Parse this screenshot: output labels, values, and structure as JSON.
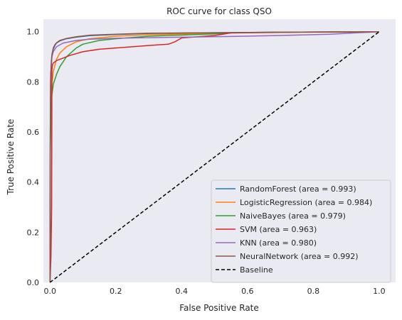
{
  "chart_data": {
    "type": "line",
    "title": "ROC curve for class QSO",
    "xlabel": "False Positive Rate",
    "ylabel": "True Positive Rate",
    "xlim": [
      -0.02,
      1.05
    ],
    "ylim": [
      0,
      1.05
    ],
    "xticks": [
      0.0,
      0.2,
      0.4,
      0.6,
      0.8,
      1.0
    ],
    "yticks": [
      0.0,
      0.2,
      0.4,
      0.6,
      0.8,
      1.0
    ],
    "xtick_labels": [
      "0.0",
      "0.2",
      "0.4",
      "0.6",
      "0.8",
      "1.0"
    ],
    "ytick_labels": [
      "0.0",
      "0.2",
      "0.4",
      "0.6",
      "0.8",
      "1.0"
    ],
    "grid": false,
    "background": "#eaeaf2",
    "legend_position": "lower-right",
    "series": [
      {
        "name": "RandomForest (area = 0.993)",
        "color": "#1f77b4",
        "x": [
          0,
          0.001,
          0.002,
          0.004,
          0.006,
          0.01,
          0.015,
          0.02,
          0.03,
          0.05,
          0.08,
          0.12,
          0.2,
          0.3,
          0.5,
          0.7,
          1.0
        ],
        "y": [
          0,
          0.6,
          0.8,
          0.87,
          0.9,
          0.93,
          0.945,
          0.955,
          0.963,
          0.972,
          0.978,
          0.984,
          0.989,
          0.993,
          0.996,
          0.998,
          1.0
        ]
      },
      {
        "name": "LogisticRegression (area = 0.984)",
        "color": "#ff7f0e",
        "x": [
          0,
          0.001,
          0.003,
          0.005,
          0.01,
          0.02,
          0.03,
          0.05,
          0.08,
          0.12,
          0.2,
          0.3,
          0.5,
          0.7,
          1.0
        ],
        "y": [
          0,
          0.55,
          0.72,
          0.78,
          0.84,
          0.89,
          0.915,
          0.94,
          0.96,
          0.972,
          0.982,
          0.988,
          0.994,
          0.997,
          1.0
        ]
      },
      {
        "name": "NaiveBayes (area = 0.979)",
        "color": "#2ca02c",
        "x": [
          0,
          0.001,
          0.003,
          0.005,
          0.01,
          0.02,
          0.03,
          0.05,
          0.08,
          0.1,
          0.15,
          0.2,
          0.3,
          0.5,
          0.56,
          0.7,
          1.0
        ],
        "y": [
          0,
          0.5,
          0.68,
          0.74,
          0.79,
          0.83,
          0.86,
          0.9,
          0.935,
          0.95,
          0.965,
          0.972,
          0.982,
          0.991,
          0.996,
          0.998,
          1.0
        ]
      },
      {
        "name": "SVM (area = 0.963)",
        "color": "#d62728",
        "x": [
          0,
          0.003,
          0.005,
          0.006,
          0.008,
          0.01,
          0.015,
          0.02,
          0.04,
          0.06,
          0.1,
          0.15,
          0.2,
          0.3,
          0.36,
          0.38,
          0.4,
          0.5,
          0.55,
          0.7,
          1.0
        ],
        "y": [
          0,
          0.1,
          0.3,
          0.85,
          0.87,
          0.875,
          0.88,
          0.885,
          0.895,
          0.905,
          0.92,
          0.93,
          0.935,
          0.945,
          0.95,
          0.96,
          0.975,
          0.985,
          0.995,
          0.998,
          1.0
        ]
      },
      {
        "name": "KNN (area = 0.980)",
        "color": "#9467bd",
        "x": [
          0,
          0.001,
          0.002,
          0.004,
          0.006,
          0.01,
          0.015,
          0.02,
          0.04,
          0.08,
          0.12,
          0.2,
          0.4,
          0.55,
          0.7,
          0.85,
          1.0
        ],
        "y": [
          0,
          0.6,
          0.82,
          0.87,
          0.9,
          0.92,
          0.93,
          0.94,
          0.955,
          0.965,
          0.97,
          0.974,
          0.978,
          0.981,
          0.985,
          0.99,
          1.0
        ]
      },
      {
        "name": "NeuralNetwork (area = 0.992)",
        "color": "#8c564b",
        "x": [
          0,
          0.001,
          0.002,
          0.004,
          0.006,
          0.01,
          0.015,
          0.02,
          0.03,
          0.05,
          0.08,
          0.12,
          0.2,
          0.3,
          0.5,
          0.7,
          1.0
        ],
        "y": [
          0,
          0.62,
          0.82,
          0.88,
          0.91,
          0.935,
          0.948,
          0.956,
          0.965,
          0.973,
          0.98,
          0.986,
          0.99,
          0.994,
          0.996,
          0.998,
          1.0
        ]
      },
      {
        "name": "Baseline",
        "color": "#000000",
        "dashed": true,
        "x": [
          0,
          1
        ],
        "y": [
          0,
          1
        ]
      }
    ]
  }
}
